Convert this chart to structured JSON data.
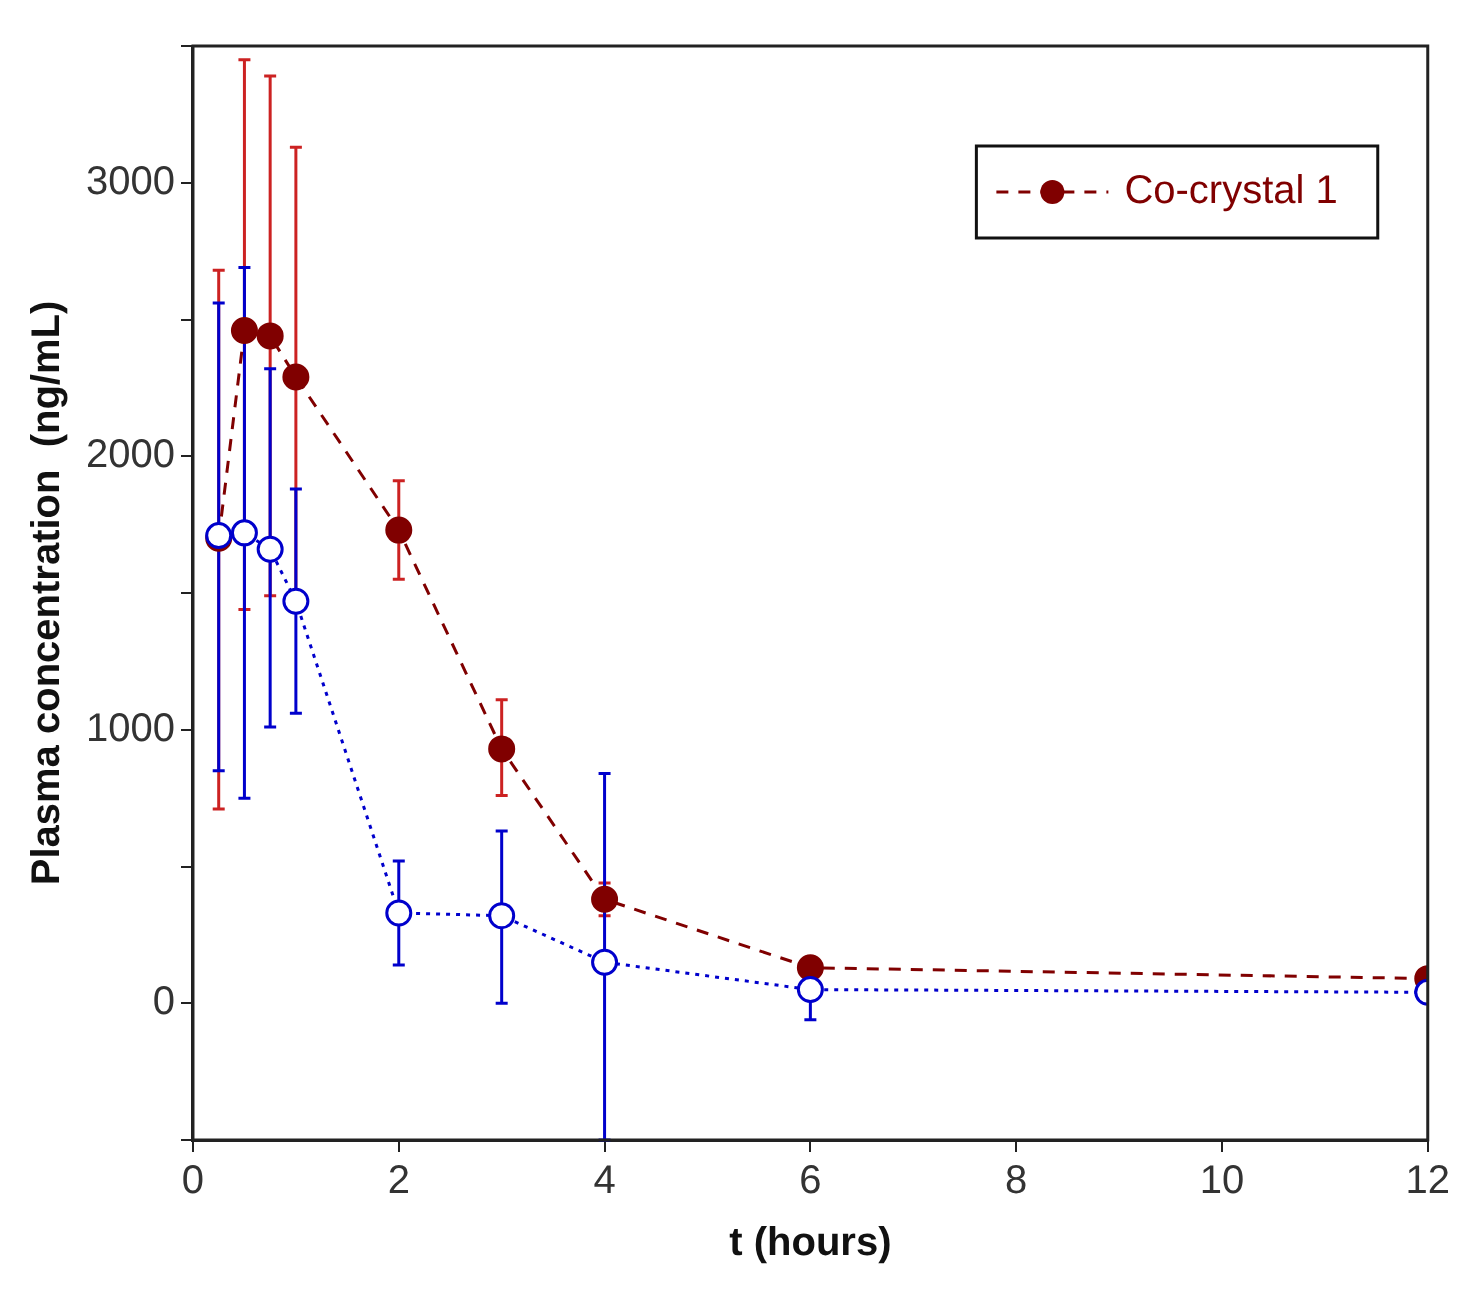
{
  "chart_data": {
    "type": "line",
    "xlabel": "t (hours)",
    "ylabel": "Plasma concentration  (ng/mL)",
    "x": [
      0.25,
      0.5,
      0.75,
      1,
      2,
      3,
      4,
      6,
      12
    ],
    "series": [
      {
        "name": "Co-crystal 1",
        "color": "#800000",
        "line_style": "dashed",
        "values": [
          1700,
          2460,
          2440,
          2290,
          1730,
          930,
          380,
          130,
          90
        ],
        "errors": [
          [
            710,
            2680
          ],
          [
            1440,
            3450
          ],
          [
            1490,
            3390
          ],
          [
            1450,
            3130
          ],
          [
            1550,
            1910
          ],
          [
            760,
            1110
          ],
          [
            320,
            440
          ],
          null,
          null
        ]
      },
      {
        "color": "#0000cc",
        "line_style": "dotted",
        "values": [
          1710,
          1720,
          1660,
          1470,
          330,
          320,
          150,
          50,
          40
        ],
        "errors": [
          [
            850,
            2560
          ],
          [
            750,
            2690
          ],
          [
            1010,
            2320
          ],
          [
            1060,
            1880
          ],
          [
            140,
            520
          ],
          [
            0,
            630
          ],
          [
            -500,
            840
          ],
          [
            -60,
            160
          ],
          null
        ]
      }
    ],
    "xlim": [
      0,
      12
    ],
    "xticks": [
      0,
      2,
      4,
      6,
      8,
      10,
      12
    ],
    "ylim": [
      -500,
      3500
    ],
    "yticks": [
      {
        "value": -500,
        "label": null
      },
      0,
      {
        "value": 500,
        "label": null
      },
      1000,
      {
        "value": 1500,
        "label": null
      },
      2000,
      {
        "value": 2500,
        "label": null
      },
      3000,
      {
        "value": 3500,
        "label": null
      }
    ],
    "grid": false,
    "legend": "top right",
    "marker": "circle"
  }
}
